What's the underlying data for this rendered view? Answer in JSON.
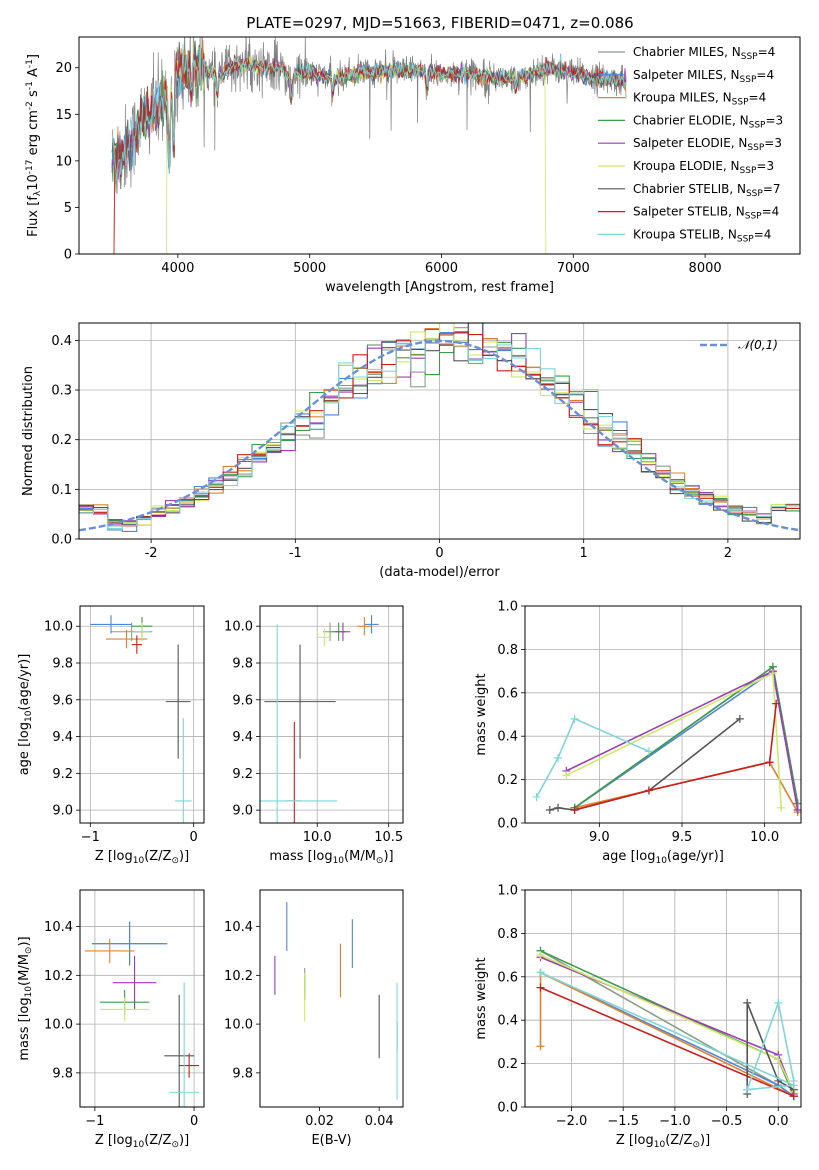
{
  "figure": {
    "title": "PLATE=0297, MJD=51663, FIBERID=0471, z=0.086"
  },
  "series_styles": [
    {
      "name": "Chabrier MILES, N$_{SSP}$=4",
      "color": "#8c9e8c"
    },
    {
      "name": "Salpeter MILES, N$_{SSP}$=4",
      "color": "#4f86d8"
    },
    {
      "name": "Kroupa MILES, N$_{SSP}$=4",
      "color": "#e0822d"
    },
    {
      "name": "Chabrier ELODIE, N$_{SSP}$=3",
      "color": "#3f9a4f"
    },
    {
      "name": "Salpeter ELODIE, N$_{SSP}$=3",
      "color": "#9b3fb2"
    },
    {
      "name": "Kroupa ELODIE, N$_{SSP}$=3",
      "color": "#cde86a"
    },
    {
      "name": "Chabrier STELIB, N$_{SSP}$=7",
      "color": "#555555"
    },
    {
      "name": "Salpeter STELIB, N$_{SSP}$=4",
      "color": "#c72020"
    },
    {
      "name": "Kroupa STELIB, N$_{SSP}$=4",
      "color": "#7fd6d6"
    }
  ],
  "chart_data": [
    {
      "id": "spectrum",
      "type": "line",
      "title": "PLATE=0297, MJD=51663, FIBERID=0471, z=0.086",
      "xlabel": "wavelength [Angstrom, rest frame]",
      "ylabel": "Flux [f$_\\lambda$10$^{-17}$ erg cm$^{-2}$ s$^{-1}$ A$^{-1}$]",
      "xlim": [
        3250,
        8720
      ],
      "ylim": [
        0,
        23.3
      ],
      "xticks": [
        4000,
        5000,
        6000,
        7000,
        8000
      ],
      "yticks": [
        0,
        5,
        10,
        15,
        20
      ],
      "grid": false,
      "legend": "right",
      "data_color": "#808080",
      "continuum": {
        "x": [
          3500,
          3550,
          3600,
          3650,
          3700,
          3750,
          3800,
          3850,
          3900,
          3950,
          4000,
          4100,
          4200,
          4300,
          4400,
          4500,
          4600,
          4700,
          4800,
          4860,
          4900,
          5000,
          5100,
          5200,
          5300,
          5400,
          5500,
          5600,
          5700,
          5800,
          5900,
          6000,
          6100,
          6200,
          6300,
          6400,
          6500,
          6600,
          6700,
          6800,
          6900,
          7000,
          7100,
          7200,
          7300,
          7400
        ],
        "y": [
          10.0,
          10.3,
          11.2,
          12.0,
          13.8,
          14.8,
          15.0,
          16.0,
          16.5,
          17.0,
          19.8,
          20.0,
          19.8,
          19.0,
          20.0,
          20.3,
          20.2,
          20.0,
          19.9,
          18.5,
          19.3,
          19.5,
          19.0,
          18.8,
          19.2,
          19.6,
          19.5,
          19.8,
          19.6,
          19.7,
          19.5,
          19.4,
          19.3,
          19.4,
          19.2,
          19.0,
          18.8,
          19.0,
          19.5,
          20.0,
          19.8,
          19.4,
          19.1,
          18.9,
          18.7,
          18.5
        ]
      },
      "drop_edges": {
        "Kroupa MILES": [
          3520,
          7410
        ],
        "Kroupa ELODIE": [
          3920,
          6790
        ],
        "Salpeter STELIB": [
          3520,
          7400
        ]
      }
    },
    {
      "id": "residuals",
      "type": "area",
      "xlabel": "(data-model)/error",
      "ylabel": "Normed distribution",
      "xlim": [
        -2.5,
        2.5
      ],
      "ylim": [
        0,
        0.435
      ],
      "xticks": [
        -2,
        -1,
        0,
        1,
        2
      ],
      "yticks": [
        0.0,
        0.1,
        0.2,
        0.3,
        0.4
      ],
      "grid": true,
      "legend": "top-right",
      "reference_label": "$\\mathcal{N}(0,1)$",
      "reference_color": "#6a8fd8",
      "bin_width": 0.1
    },
    {
      "id": "age_vs_Z",
      "type": "scatter",
      "xlabel": "Z [log$_{10}$(Z/Z$_\\odot$)]",
      "ylabel": "age  [log$_{10}$(age/yr)]",
      "xlim": [
        -1.1,
        0.1
      ],
      "ylim": [
        8.93,
        10.11
      ],
      "xticks": [
        -1,
        0
      ],
      "yticks": [
        9.0,
        9.2,
        9.4,
        9.6,
        9.8,
        10.0
      ],
      "grid": true,
      "points": [
        {
          "s": 0,
          "x": -0.6,
          "y": 9.97,
          "xe": 0.2,
          "ye": 0.05
        },
        {
          "s": 1,
          "x": -0.8,
          "y": 10.01,
          "xe": 0.2,
          "ye": 0.05
        },
        {
          "s": 2,
          "x": -0.65,
          "y": 9.93,
          "xe": 0.2,
          "ye": 0.05
        },
        {
          "s": 3,
          "x": -0.5,
          "y": 10.0,
          "xe": 0.1,
          "ye": 0.05
        },
        {
          "s": 4,
          "x": -0.5,
          "y": 9.97,
          "xe": 0.08,
          "ye": 0.05
        },
        {
          "s": 5,
          "x": -0.5,
          "y": 9.97,
          "xe": 0.08,
          "ye": 0.05
        },
        {
          "s": 6,
          "x": -0.15,
          "y": 9.59,
          "xe": 0.12,
          "ye": 0.31
        },
        {
          "s": 7,
          "x": -0.55,
          "y": 9.9,
          "xe": 0.05,
          "ye": 0.05
        },
        {
          "s": 8,
          "x": -0.1,
          "y": 9.05,
          "xe": 0.08,
          "ye": 0.45
        }
      ]
    },
    {
      "id": "age_vs_mass",
      "type": "scatter",
      "xlabel": "mass [log$_{10}$(M/M$_\\odot$)]",
      "ylabel": "",
      "xlim": [
        9.6,
        10.6
      ],
      "ylim": [
        8.93,
        10.11
      ],
      "xticks": [
        9.5,
        10.0,
        10.5
      ],
      "yticks": [
        9.0,
        9.2,
        9.4,
        9.6,
        9.8,
        10.0
      ],
      "grid": true,
      "points": [
        {
          "s": 0,
          "x": 10.09,
          "y": 9.97,
          "xe": 0.05,
          "ye": 0.05
        },
        {
          "s": 1,
          "x": 10.38,
          "y": 10.01,
          "xe": 0.05,
          "ye": 0.05
        },
        {
          "s": 2,
          "x": 10.33,
          "y": 10.0,
          "xe": 0.05,
          "ye": 0.05
        },
        {
          "s": 3,
          "x": 10.15,
          "y": 9.97,
          "xe": 0.05,
          "ye": 0.05
        },
        {
          "s": 4,
          "x": 10.18,
          "y": 9.97,
          "xe": 0.05,
          "ye": 0.05
        },
        {
          "s": 5,
          "x": 10.05,
          "y": 9.94,
          "xe": 0.05,
          "ye": 0.05
        },
        {
          "s": 6,
          "x": 9.88,
          "y": 9.59,
          "xe": 0.25,
          "ye": 0.31
        },
        {
          "s": 7,
          "x": 9.84,
          "y": 9.05,
          "xe": 0.05,
          "ye": 0.43
        },
        {
          "s": 8,
          "x": 9.72,
          "y": 9.05,
          "xe": 0.42,
          "ye": 0.96
        }
      ]
    },
    {
      "id": "weight_vs_age",
      "type": "line",
      "xlabel": "age  [log$_{10}$(age/yr)]",
      "ylabel": "mass weight",
      "xlim": [
        8.55,
        10.22
      ],
      "ylim": [
        0,
        1
      ],
      "xticks": [
        9.0,
        9.5,
        10.0
      ],
      "yticks": [
        0.0,
        0.2,
        0.4,
        0.6,
        0.8,
        1.0
      ],
      "grid": true,
      "series": [
        {
          "s": 0,
          "x": [
            8.85,
            10.05,
            10.2
          ],
          "y": [
            0.07,
            0.72,
            0.09
          ]
        },
        {
          "s": 1,
          "x": [
            8.85,
            10.05,
            10.2
          ],
          "y": [
            0.07,
            0.7,
            0.06
          ]
        },
        {
          "s": 2,
          "x": [
            8.85,
            10.03,
            10.2
          ],
          "y": [
            0.07,
            0.28,
            0.05
          ]
        },
        {
          "s": 3,
          "x": [
            8.85,
            10.05,
            10.2
          ],
          "y": [
            0.07,
            0.72,
            0.09
          ]
        },
        {
          "s": 4,
          "x": [
            8.8,
            10.05,
            10.2
          ],
          "y": [
            0.24,
            0.7,
            0.06
          ]
        },
        {
          "s": 5,
          "x": [
            8.8,
            10.05,
            10.1
          ],
          "y": [
            0.22,
            0.69,
            0.07
          ]
        },
        {
          "s": 6,
          "x": [
            8.7,
            8.75,
            8.85,
            9.3,
            9.85
          ],
          "y": [
            0.06,
            0.07,
            0.06,
            0.15,
            0.48
          ]
        },
        {
          "s": 7,
          "x": [
            8.85,
            9.3,
            10.03,
            10.07
          ],
          "y": [
            0.06,
            0.15,
            0.28,
            0.55
          ]
        },
        {
          "s": 8,
          "x": [
            8.62,
            8.75,
            8.85,
            9.3
          ],
          "y": [
            0.12,
            0.3,
            0.48,
            0.33
          ]
        }
      ]
    },
    {
      "id": "mass_vs_Z",
      "type": "scatter",
      "xlabel": "Z [log$_{10}$(Z/Z$_\\odot$)]",
      "ylabel": "mass [log$_{10}$(M/M$_\\odot$)]",
      "xlim": [
        -1.15,
        0.1
      ],
      "ylim": [
        9.66,
        10.55
      ],
      "xticks": [
        -1,
        0
      ],
      "yticks": [
        9.8,
        10.0,
        10.2,
        10.4
      ],
      "grid": true,
      "points": [
        {
          "s": 0,
          "x": -0.65,
          "y": 10.33,
          "xe": 0.38,
          "ye": 0.09
        },
        {
          "s": 1,
          "x": -0.65,
          "y": 10.33,
          "xe": 0.38,
          "ye": 0.09
        },
        {
          "s": 2,
          "x": -0.85,
          "y": 10.3,
          "xe": 0.25,
          "ye": 0.05
        },
        {
          "s": 3,
          "x": -0.7,
          "y": 10.09,
          "xe": 0.25,
          "ye": 0.05
        },
        {
          "s": 4,
          "x": -0.6,
          "y": 10.17,
          "xe": 0.22,
          "ye": 0.11
        },
        {
          "s": 5,
          "x": -0.7,
          "y": 10.06,
          "xe": 0.25,
          "ye": 0.05
        },
        {
          "s": 6,
          "x": -0.15,
          "y": 9.87,
          "xe": 0.15,
          "ye": 0.25
        },
        {
          "s": 7,
          "x": -0.05,
          "y": 9.83,
          "xe": 0.1,
          "ye": 0.05
        },
        {
          "s": 8,
          "x": -0.1,
          "y": 9.72,
          "xe": 0.15,
          "ye": 0.45
        }
      ]
    },
    {
      "id": "mass_vs_EBV",
      "type": "scatter",
      "xlabel": "E(B-V)",
      "ylabel": "",
      "xlim": [
        0.0,
        0.048
      ],
      "ylim": [
        9.66,
        10.55
      ],
      "xticks": [
        0.02,
        0.04
      ],
      "yticks": [
        9.8,
        10.0,
        10.2,
        10.4
      ],
      "grid": false,
      "points": [
        {
          "s": 0,
          "x": 0.015,
          "y": 10.18,
          "xe": 0.0,
          "ye": 0.05
        },
        {
          "s": 1,
          "x": 0.031,
          "y": 10.33,
          "xe": 0.0,
          "ye": 0.1
        },
        {
          "s": 2,
          "x": 0.027,
          "y": 10.22,
          "xe": 0.0,
          "ye": 0.11
        },
        {
          "s": 3,
          "x": 0.015,
          "y": 10.15,
          "xe": 0.0,
          "ye": 0.05
        },
        {
          "s": 4,
          "x": 0.005,
          "y": 10.2,
          "xe": 0.0,
          "ye": 0.08
        },
        {
          "s": 5,
          "x": 0.015,
          "y": 10.11,
          "xe": 0.0,
          "ye": 0.1
        },
        {
          "s": 6,
          "x": 0.04,
          "y": 9.99,
          "xe": 0.0,
          "ye": 0.13
        },
        {
          "s": 7,
          "x": 0.046,
          "y": 9.95,
          "xe": 0.0,
          "ye": 0.06
        },
        {
          "s": 8,
          "x": 0.046,
          "y": 9.93,
          "xe": 0.0,
          "ye": 0.24
        }
      ],
      "extra_marks": [
        {
          "s": 1,
          "x": 0.009,
          "y": 10.4,
          "ye": 0.1
        }
      ]
    },
    {
      "id": "weight_vs_Z",
      "type": "line",
      "xlabel": "Z [log$_{10}$(Z/Z$_\\odot$)]",
      "ylabel": "mass weight",
      "xlim": [
        -2.45,
        0.22
      ],
      "ylim": [
        0,
        1
      ],
      "xticks": [
        -2.0,
        -1.5,
        -1.0,
        -0.5,
        0.0
      ],
      "yticks": [
        0.0,
        0.2,
        0.4,
        0.6,
        0.8,
        1.0
      ],
      "grid": true,
      "series": [
        {
          "s": 0,
          "x": [
            -2.3,
            0.0,
            0.15
          ],
          "y": [
            0.72,
            0.1,
            0.05
          ]
        },
        {
          "s": 1,
          "x": [
            -2.3,
            0.0,
            0.15
          ],
          "y": [
            0.62,
            0.1,
            0.05
          ]
        },
        {
          "s": 2,
          "x": [
            -2.3,
            -2.3,
            0.15
          ],
          "y": [
            0.28,
            0.62,
            0.05
          ]
        },
        {
          "s": 3,
          "x": [
            -2.3,
            0.0,
            0.15
          ],
          "y": [
            0.72,
            0.22,
            0.05
          ]
        },
        {
          "s": 4,
          "x": [
            -2.3,
            0.0,
            0.15
          ],
          "y": [
            0.69,
            0.24,
            0.06
          ]
        },
        {
          "s": 5,
          "x": [
            -2.3,
            0.0,
            0.15
          ],
          "y": [
            0.7,
            0.22,
            0.07
          ]
        },
        {
          "s": 6,
          "x": [
            -0.3,
            -0.3,
            0.0,
            0.15
          ],
          "y": [
            0.06,
            0.48,
            0.12,
            0.08
          ]
        },
        {
          "s": 7,
          "x": [
            -2.3,
            0.15
          ],
          "y": [
            0.55,
            0.05
          ]
        },
        {
          "s": 8,
          "x": [
            -2.3,
            0.15,
            -0.3,
            0.0,
            0.15
          ],
          "y": [
            0.62,
            0.1,
            0.08,
            0.48,
            0.12
          ]
        }
      ]
    }
  ]
}
